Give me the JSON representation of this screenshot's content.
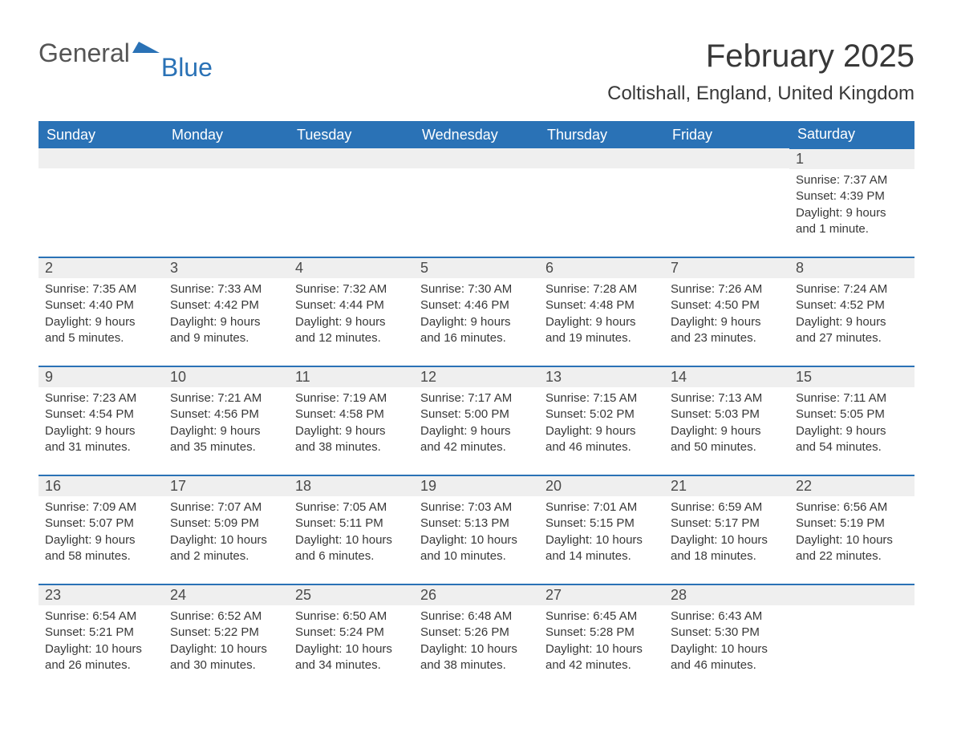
{
  "logo": {
    "text1": "General",
    "text2": "Blue",
    "accent_color": "#2a72b6"
  },
  "title": "February 2025",
  "location": "Coltishall, England, United Kingdom",
  "colors": {
    "header_bg": "#2a72b6",
    "header_text": "#ffffff",
    "row_stripe": "#efefef",
    "border": "#2a72b6",
    "text": "#383838",
    "background": "#ffffff"
  },
  "font_family": "Segoe UI, Arial, sans-serif",
  "day_headers": [
    "Sunday",
    "Monday",
    "Tuesday",
    "Wednesday",
    "Thursday",
    "Friday",
    "Saturday"
  ],
  "weeks": [
    [
      null,
      null,
      null,
      null,
      null,
      null,
      {
        "n": "1",
        "sunrise": "7:37 AM",
        "sunset": "4:39 PM",
        "daylight": "9 hours and 1 minute."
      }
    ],
    [
      {
        "n": "2",
        "sunrise": "7:35 AM",
        "sunset": "4:40 PM",
        "daylight": "9 hours and 5 minutes."
      },
      {
        "n": "3",
        "sunrise": "7:33 AM",
        "sunset": "4:42 PM",
        "daylight": "9 hours and 9 minutes."
      },
      {
        "n": "4",
        "sunrise": "7:32 AM",
        "sunset": "4:44 PM",
        "daylight": "9 hours and 12 minutes."
      },
      {
        "n": "5",
        "sunrise": "7:30 AM",
        "sunset": "4:46 PM",
        "daylight": "9 hours and 16 minutes."
      },
      {
        "n": "6",
        "sunrise": "7:28 AM",
        "sunset": "4:48 PM",
        "daylight": "9 hours and 19 minutes."
      },
      {
        "n": "7",
        "sunrise": "7:26 AM",
        "sunset": "4:50 PM",
        "daylight": "9 hours and 23 minutes."
      },
      {
        "n": "8",
        "sunrise": "7:24 AM",
        "sunset": "4:52 PM",
        "daylight": "9 hours and 27 minutes."
      }
    ],
    [
      {
        "n": "9",
        "sunrise": "7:23 AM",
        "sunset": "4:54 PM",
        "daylight": "9 hours and 31 minutes."
      },
      {
        "n": "10",
        "sunrise": "7:21 AM",
        "sunset": "4:56 PM",
        "daylight": "9 hours and 35 minutes."
      },
      {
        "n": "11",
        "sunrise": "7:19 AM",
        "sunset": "4:58 PM",
        "daylight": "9 hours and 38 minutes."
      },
      {
        "n": "12",
        "sunrise": "7:17 AM",
        "sunset": "5:00 PM",
        "daylight": "9 hours and 42 minutes."
      },
      {
        "n": "13",
        "sunrise": "7:15 AM",
        "sunset": "5:02 PM",
        "daylight": "9 hours and 46 minutes."
      },
      {
        "n": "14",
        "sunrise": "7:13 AM",
        "sunset": "5:03 PM",
        "daylight": "9 hours and 50 minutes."
      },
      {
        "n": "15",
        "sunrise": "7:11 AM",
        "sunset": "5:05 PM",
        "daylight": "9 hours and 54 minutes."
      }
    ],
    [
      {
        "n": "16",
        "sunrise": "7:09 AM",
        "sunset": "5:07 PM",
        "daylight": "9 hours and 58 minutes."
      },
      {
        "n": "17",
        "sunrise": "7:07 AM",
        "sunset": "5:09 PM",
        "daylight": "10 hours and 2 minutes."
      },
      {
        "n": "18",
        "sunrise": "7:05 AM",
        "sunset": "5:11 PM",
        "daylight": "10 hours and 6 minutes."
      },
      {
        "n": "19",
        "sunrise": "7:03 AM",
        "sunset": "5:13 PM",
        "daylight": "10 hours and 10 minutes."
      },
      {
        "n": "20",
        "sunrise": "7:01 AM",
        "sunset": "5:15 PM",
        "daylight": "10 hours and 14 minutes."
      },
      {
        "n": "21",
        "sunrise": "6:59 AM",
        "sunset": "5:17 PM",
        "daylight": "10 hours and 18 minutes."
      },
      {
        "n": "22",
        "sunrise": "6:56 AM",
        "sunset": "5:19 PM",
        "daylight": "10 hours and 22 minutes."
      }
    ],
    [
      {
        "n": "23",
        "sunrise": "6:54 AM",
        "sunset": "5:21 PM",
        "daylight": "10 hours and 26 minutes."
      },
      {
        "n": "24",
        "sunrise": "6:52 AM",
        "sunset": "5:22 PM",
        "daylight": "10 hours and 30 minutes."
      },
      {
        "n": "25",
        "sunrise": "6:50 AM",
        "sunset": "5:24 PM",
        "daylight": "10 hours and 34 minutes."
      },
      {
        "n": "26",
        "sunrise": "6:48 AM",
        "sunset": "5:26 PM",
        "daylight": "10 hours and 38 minutes."
      },
      {
        "n": "27",
        "sunrise": "6:45 AM",
        "sunset": "5:28 PM",
        "daylight": "10 hours and 42 minutes."
      },
      {
        "n": "28",
        "sunrise": "6:43 AM",
        "sunset": "5:30 PM",
        "daylight": "10 hours and 46 minutes."
      },
      null
    ]
  ],
  "labels": {
    "sunrise": "Sunrise: ",
    "sunset": "Sunset: ",
    "daylight": "Daylight: "
  }
}
